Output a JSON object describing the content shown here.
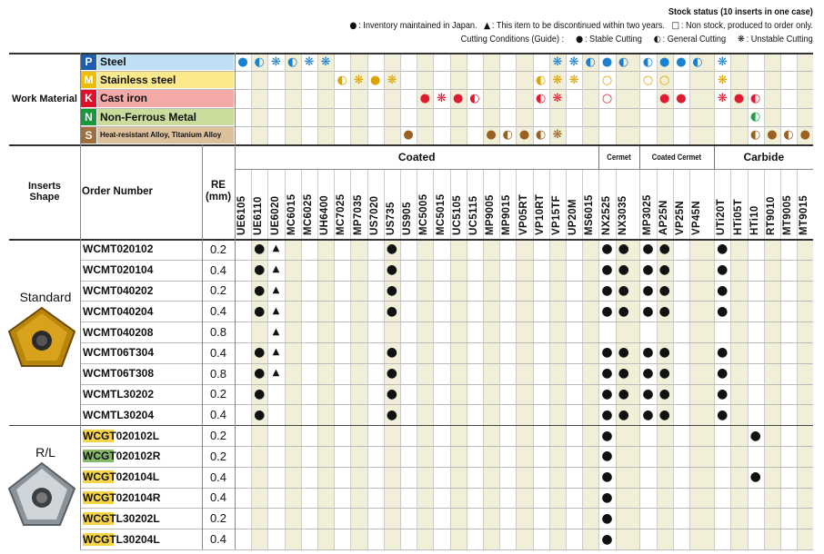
{
  "header": {
    "stock_title": "Stock status (10 inserts in one case)",
    "stock_legend": [
      {
        "symbol": "●",
        "label": ": Inventory maintained in Japan."
      },
      {
        "symbol": "▲",
        "label": ": This item to be discontinued within two years."
      },
      {
        "symbol": "□",
        "label": ": Non stock, produced to order only."
      }
    ],
    "cutting_title": "Cutting Conditions (Guide) :",
    "cutting_legend": [
      {
        "symbol": "●",
        "label": ": Stable Cutting"
      },
      {
        "symbol": "◐",
        "label": ": General Cutting"
      },
      {
        "symbol": "❋",
        "label": ": Unstable Cutting"
      }
    ]
  },
  "work_material": {
    "label": "Work Material",
    "rows": [
      {
        "letter": "P",
        "name": "Steel",
        "letter_color": "#1d5eb0",
        "bg": "#bfe0f4",
        "symbol_color": "#1a80d0",
        "conditions": {
          "UE6105": "●",
          "UE6110": "◐",
          "UE6020": "❋",
          "MC6015": "◐",
          "MC6025": "❋",
          "UH6400": "❋",
          "VP15TF": "❋",
          "UP20M": "❋",
          "MS6015": "◐",
          "NX2525": "●",
          "NX3035": "◐",
          "MP3025": "◐",
          "AP25N": "●",
          "VP25N": "●",
          "VP45N": "◐",
          "UTi20T": "❋"
        }
      },
      {
        "letter": "M",
        "name": "Stainless steel",
        "letter_color": "#eebf00",
        "bg": "#fbe98c",
        "symbol_color": "#d9a400",
        "conditions": {
          "MC7025": "◐",
          "MP7035": "❋",
          "US7020": "●",
          "US735": "❋",
          "VP10RT": "◐",
          "VP15TF": "❋",
          "UP20M": "❋",
          "NX2525": "○",
          "MP3025": "○",
          "AP25N": "○",
          "UTi20T": "❋"
        }
      },
      {
        "letter": "K",
        "name": "Cast iron",
        "letter_color": "#e0102a",
        "bg": "#f4a8a8",
        "symbol_color": "#e01a30",
        "conditions": {
          "MC5005": "●",
          "MC5015": "❋",
          "UC5105": "●",
          "UC5115": "◐",
          "VP10RT": "◐",
          "VP15TF": "❋",
          "NX2525": "○",
          "AP25N": "●",
          "VP25N": "●",
          "UTi20T": "❋",
          "HTi05T": "●",
          "HTi10": "◐"
        }
      },
      {
        "letter": "N",
        "name": "Non-Ferrous Metal",
        "letter_color": "#17983a",
        "bg": "#c9dc9c",
        "symbol_color": "#1fa040",
        "conditions": {
          "HTi10": "◐"
        }
      },
      {
        "letter": "S",
        "name": "Heat-resistant Alloy, Titanium Alloy",
        "letter_color": "#a06f3e",
        "bg": "#dcc09c",
        "symbol_color": "#9a6222",
        "conditions": {
          "US905": "●",
          "MP9005": "●",
          "MP9015": "◐",
          "VP05RT": "●",
          "VP10RT": "◐",
          "VP15TF": "❋",
          "HTi10": "◐",
          "RT9010": "●",
          "MT9005": "◐",
          "MT9015": "●"
        }
      }
    ]
  },
  "table": {
    "shape_header": "Inserts Shape",
    "order_header": "Order Number",
    "re_header": [
      "RE",
      "(mm)"
    ],
    "groups": [
      {
        "name": "Coated",
        "grades": [
          "UE6105",
          "UE6110",
          "UE6020",
          "MC6015",
          "MC6025",
          "UH6400",
          "MC7025",
          "MP7035",
          "US7020",
          "US735",
          "US905",
          "MC5005",
          "MC5015",
          "UC5105",
          "UC5115",
          "MP9005",
          "MP9015",
          "VP05RT",
          "VP10RT",
          "VP15TF",
          "UP20M",
          "MS6015"
        ]
      },
      {
        "name": "Cermet",
        "grades": [
          "NX2525",
          "NX3035"
        ]
      },
      {
        "name": "Coated Cermet",
        "grades": [
          "MP3025",
          "AP25N",
          "VP25N",
          "VP45N"
        ]
      },
      {
        "name": "Carbide",
        "grades": [
          "UTi20T",
          "HTi05T",
          "HTi10",
          "RT9010",
          "MT9005",
          "MT9015"
        ]
      }
    ],
    "sections": [
      {
        "name": "Standard",
        "rows": [
          {
            "order": "WCMT020102",
            "re": 0.2,
            "stock": {
              "UE6110": "●",
              "UE6020": "▲",
              "US735": "●",
              "NX2525": "●",
              "NX3035": "●",
              "MP3025": "●",
              "AP25N": "●",
              "UTi20T": "●"
            }
          },
          {
            "order": "WCMT020104",
            "re": 0.4,
            "stock": {
              "UE6110": "●",
              "UE6020": "▲",
              "US735": "●",
              "NX2525": "●",
              "NX3035": "●",
              "MP3025": "●",
              "AP25N": "●",
              "UTi20T": "●"
            }
          },
          {
            "order": "WCMT040202",
            "re": 0.2,
            "stock": {
              "UE6110": "●",
              "UE6020": "▲",
              "US735": "●",
              "NX2525": "●",
              "NX3035": "●",
              "MP3025": "●",
              "AP25N": "●",
              "UTi20T": "●"
            }
          },
          {
            "order": "WCMT040204",
            "re": 0.4,
            "stock": {
              "UE6110": "●",
              "UE6020": "▲",
              "US735": "●",
              "NX2525": "●",
              "NX3035": "●",
              "MP3025": "●",
              "AP25N": "●",
              "UTi20T": "●"
            }
          },
          {
            "order": "WCMT040208",
            "re": 0.8,
            "stock": {
              "UE6020": "▲"
            }
          },
          {
            "order": "WCMT06T304",
            "re": 0.4,
            "stock": {
              "UE6110": "●",
              "UE6020": "▲",
              "US735": "●",
              "NX2525": "●",
              "NX3035": "●",
              "MP3025": "●",
              "AP25N": "●",
              "UTi20T": "●"
            }
          },
          {
            "order": "WCMT06T308",
            "re": 0.8,
            "stock": {
              "UE6110": "●",
              "UE6020": "▲",
              "US735": "●",
              "NX2525": "●",
              "NX3035": "●",
              "MP3025": "●",
              "AP25N": "●",
              "UTi20T": "●"
            }
          },
          {
            "order": "WCMTL30202",
            "re": 0.2,
            "stock": {
              "UE6110": "●",
              "US735": "●",
              "NX2525": "●",
              "NX3035": "●",
              "MP3025": "●",
              "AP25N": "●",
              "UTi20T": "●"
            }
          },
          {
            "order": "WCMTL30204",
            "re": 0.4,
            "stock": {
              "UE6110": "●",
              "US735": "●",
              "NX2525": "●",
              "NX3035": "●",
              "MP3025": "●",
              "AP25N": "●",
              "UTi20T": "●"
            }
          }
        ]
      },
      {
        "name": "R/L",
        "rows": [
          {
            "order": "WCGT020102L",
            "re": 0.2,
            "highlight": "#f6d445",
            "stock": {
              "NX2525": "●",
              "HTi10": "●"
            }
          },
          {
            "order": "WCGT020102R",
            "re": 0.2,
            "highlight": "#86b86a",
            "stock": {
              "NX2525": "●"
            }
          },
          {
            "order": "WCGT020104L",
            "re": 0.4,
            "highlight": "#f6d445",
            "stock": {
              "NX2525": "●",
              "HTi10": "●"
            }
          },
          {
            "order": "WCGT020104R",
            "re": 0.4,
            "highlight": "#f6d445",
            "stock": {
              "NX2525": "●"
            }
          },
          {
            "order": "WCGTL30202L",
            "re": 0.2,
            "highlight": "#f6d445",
            "stock": {
              "NX2525": "●"
            }
          },
          {
            "order": "WCGTL30204L",
            "re": 0.4,
            "highlight": "#f6d445",
            "stock": {
              "NX2525": "●"
            }
          }
        ]
      }
    ]
  }
}
